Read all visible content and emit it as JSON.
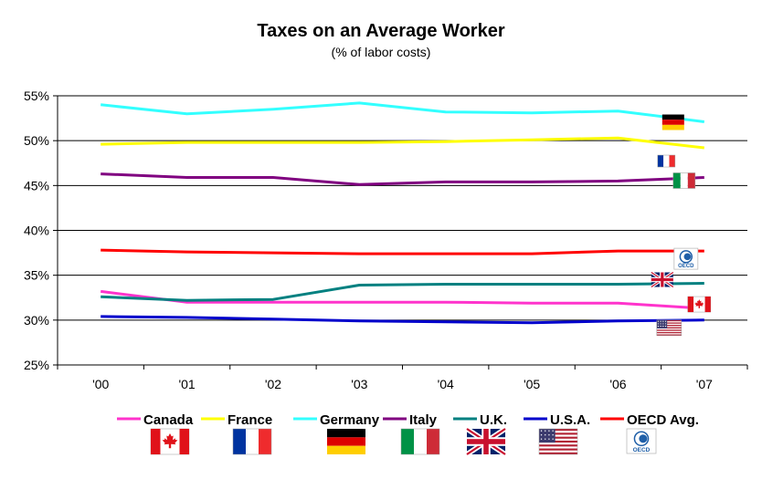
{
  "chart_data": {
    "type": "line",
    "title": "Taxes on an Average Worker",
    "subtitle": "(% of labor costs)",
    "xlabel": "",
    "ylabel": "",
    "categories": [
      "'00",
      "'01",
      "'02",
      "'03",
      "'04",
      "'05",
      "'06",
      "'07"
    ],
    "y_ticks": [
      "25%",
      "30%",
      "35%",
      "40%",
      "45%",
      "50%",
      "55%"
    ],
    "ylim": [
      25,
      55
    ],
    "grid": true,
    "legend_position": "bottom",
    "series": [
      {
        "name": "Canada",
        "color": "#ff33cc",
        "flag": "canada-flag",
        "values": [
          33.2,
          32.0,
          32.0,
          32.0,
          32.0,
          31.9,
          31.9,
          31.3
        ]
      },
      {
        "name": "France",
        "color": "#ffff00",
        "flag": "france-flag",
        "values": [
          49.6,
          49.8,
          49.8,
          49.8,
          49.9,
          50.1,
          50.3,
          49.2
        ]
      },
      {
        "name": "Germany",
        "color": "#33ffff",
        "flag": "germany-flag",
        "values": [
          54.0,
          53.0,
          53.5,
          54.2,
          53.2,
          53.1,
          53.3,
          52.1
        ]
      },
      {
        "name": "Italy",
        "color": "#800080",
        "flag": "italy-flag",
        "values": [
          46.3,
          45.9,
          45.9,
          45.1,
          45.4,
          45.4,
          45.5,
          45.9
        ]
      },
      {
        "name": "U.K.",
        "color": "#008080",
        "flag": "uk-flag",
        "values": [
          32.6,
          32.2,
          32.3,
          33.9,
          34.0,
          34.0,
          34.0,
          34.1
        ]
      },
      {
        "name": "U.S.A.",
        "color": "#0000cc",
        "flag": "usa-flag",
        "values": [
          30.4,
          30.3,
          30.1,
          29.9,
          29.8,
          29.7,
          29.9,
          30.0
        ]
      },
      {
        "name": "OECD Avg.",
        "color": "#ff0000",
        "flag": "oecd-logo",
        "values": [
          37.8,
          37.6,
          37.5,
          37.4,
          37.4,
          37.4,
          37.7,
          37.7
        ]
      }
    ],
    "annotations": [
      {
        "label": "germany-flag",
        "series": "Germany"
      },
      {
        "label": "france-flag",
        "series": "France"
      },
      {
        "label": "italy-flag",
        "series": "Italy"
      },
      {
        "label": "oecd-logo",
        "series": "OECD Avg.",
        "text": "OECD"
      },
      {
        "label": "uk-flag",
        "series": "U.K."
      },
      {
        "label": "canada-flag",
        "series": "Canada"
      },
      {
        "label": "usa-flag",
        "series": "U.S.A."
      }
    ]
  }
}
